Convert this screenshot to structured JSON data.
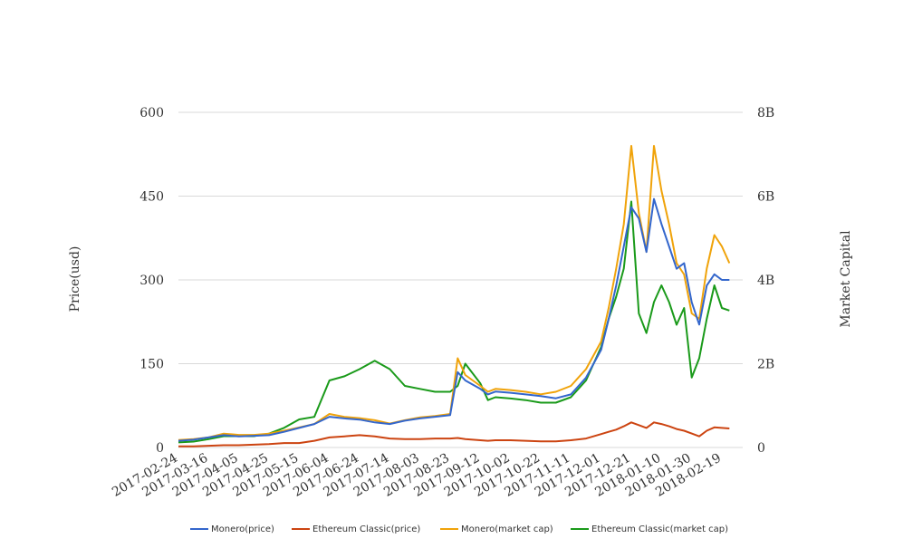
{
  "chart_data": {
    "type": "line",
    "title": "",
    "ylabel_left": "Price(usd)",
    "ylabel_right": "Market Capital",
    "ylim_left": [
      0,
      600
    ],
    "ylim_right": [
      0,
      8000000000
    ],
    "yticks_left": [
      "0",
      "150",
      "300",
      "450",
      "600"
    ],
    "yticks_right": [
      "0",
      "2B",
      "4B",
      "6B",
      "8B"
    ],
    "grid": true,
    "legend_position": "bottom",
    "x_ticks": [
      "2017-02-24",
      "2017-03-16",
      "2017-04-05",
      "2017-04-25",
      "2017-05-15",
      "2017-06-04",
      "2017-06-24",
      "2017-07-14",
      "2017-08-03",
      "2017-08-23",
      "2017-09-12",
      "2017-10-02",
      "2017-10-22",
      "2017-11-11",
      "2017-12-01",
      "2017-12-21",
      "2018-01-10",
      "2018-01-30",
      "2018-02-19"
    ],
    "x": [
      "2017-02-24",
      "2017-03-06",
      "2017-03-16",
      "2017-03-26",
      "2017-04-05",
      "2017-04-15",
      "2017-04-25",
      "2017-05-05",
      "2017-05-15",
      "2017-05-25",
      "2017-06-04",
      "2017-06-14",
      "2017-06-24",
      "2017-07-04",
      "2017-07-14",
      "2017-07-24",
      "2017-08-03",
      "2017-08-13",
      "2017-08-23",
      "2017-08-28",
      "2017-09-02",
      "2017-09-12",
      "2017-09-17",
      "2017-09-22",
      "2017-10-02",
      "2017-10-12",
      "2017-10-22",
      "2017-11-01",
      "2017-11-11",
      "2017-11-21",
      "2017-12-01",
      "2017-12-06",
      "2017-12-11",
      "2017-12-16",
      "2017-12-21",
      "2017-12-26",
      "2017-12-31",
      "2018-01-05",
      "2018-01-10",
      "2018-01-15",
      "2018-01-20",
      "2018-01-25",
      "2018-01-30",
      "2018-02-04",
      "2018-02-09",
      "2018-02-14",
      "2018-02-19",
      "2018-02-24"
    ],
    "series": [
      {
        "name": "Monero(price)",
        "axis": "left",
        "color": "#3366cc",
        "values": [
          12,
          14,
          18,
          22,
          20,
          21,
          22,
          28,
          35,
          42,
          55,
          52,
          50,
          45,
          42,
          48,
          52,
          55,
          58,
          135,
          120,
          105,
          95,
          100,
          98,
          95,
          92,
          88,
          95,
          125,
          175,
          230,
          290,
          360,
          430,
          410,
          350,
          445,
          400,
          360,
          320,
          330,
          260,
          220,
          290,
          310,
          300,
          300
        ]
      },
      {
        "name": "Ethereum Classic(price)",
        "axis": "left",
        "color": "#cc4411",
        "values": [
          2,
          2,
          3,
          4,
          4,
          5,
          6,
          8,
          8,
          12,
          18,
          20,
          22,
          20,
          16,
          15,
          15,
          16,
          16,
          17,
          15,
          13,
          12,
          13,
          13,
          12,
          11,
          11,
          13,
          16,
          24,
          28,
          32,
          38,
          45,
          40,
          35,
          45,
          42,
          38,
          33,
          30,
          25,
          20,
          30,
          36,
          35,
          34
        ]
      },
      {
        "name": "Monero(market cap)",
        "axis": "right",
        "color": "#f0a30a",
        "values": [
          180000000,
          200000000,
          240000000,
          330000000,
          300000000,
          300000000,
          330000000,
          400000000,
          480000000,
          560000000,
          800000000,
          730000000,
          700000000,
          650000000,
          570000000,
          650000000,
          720000000,
          750000000,
          800000000,
          2130000000,
          1730000000,
          1470000000,
          1330000000,
          1400000000,
          1370000000,
          1330000000,
          1270000000,
          1330000000,
          1470000000,
          1870000000,
          2530000000,
          3330000000,
          4270000000,
          5330000000,
          7200000000,
          5600000000,
          4670000000,
          7200000000,
          6130000000,
          5330000000,
          4400000000,
          4130000000,
          3200000000,
          3070000000,
          4270000000,
          5070000000,
          4800000000,
          4400000000
        ]
      },
      {
        "name": "Ethereum Classic(market cap)",
        "axis": "right",
        "color": "#1a9a1a",
        "values": [
          120000000,
          140000000,
          200000000,
          270000000,
          270000000,
          270000000,
          330000000,
          470000000,
          670000000,
          730000000,
          1600000000,
          1700000000,
          1870000000,
          2070000000,
          1870000000,
          1470000000,
          1400000000,
          1330000000,
          1330000000,
          1470000000,
          2000000000,
          1530000000,
          1130000000,
          1200000000,
          1170000000,
          1130000000,
          1070000000,
          1070000000,
          1200000000,
          1600000000,
          2400000000,
          3070000000,
          3600000000,
          4270000000,
          5870000000,
          3200000000,
          2730000000,
          3470000000,
          3870000000,
          3470000000,
          2930000000,
          3330000000,
          1670000000,
          2130000000,
          3070000000,
          3870000000,
          3330000000,
          3270000000
        ]
      }
    ]
  }
}
